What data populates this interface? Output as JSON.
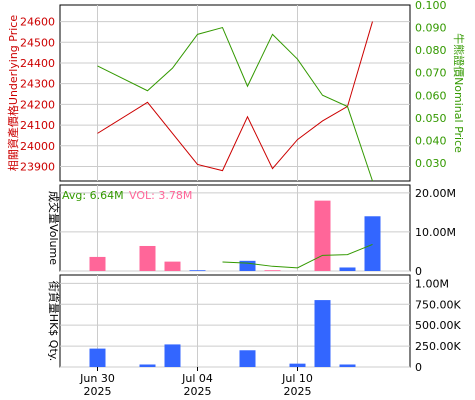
{
  "colors": {
    "underlying": "#cc0000",
    "nominal": "#339900",
    "volume_up": "#ff6699",
    "volume_down": "#3366ff",
    "avg_line": "#339900",
    "axis": "#000000",
    "grid": "#cccccc"
  },
  "chart_data": [
    {
      "type": "line",
      "name": "price-panel",
      "x": [
        "2025-06-27",
        "2025-06-30",
        "2025-07-01",
        "2025-07-02",
        "2025-07-03",
        "2025-07-04",
        "2025-07-07",
        "2025-07-08",
        "2025-07-09",
        "2025-07-10",
        "2025-07-11",
        "2025-07-14",
        "2025-07-15",
        "2025-07-16"
      ],
      "series": [
        {
          "name": "Underlying Price",
          "axis": "left",
          "values": [
            null,
            24060,
            null,
            24210,
            null,
            23910,
            23880,
            24140,
            23890,
            24030,
            24120,
            24190,
            24600,
            null
          ]
        },
        {
          "name": "Nominal Price",
          "axis": "right",
          "values": [
            null,
            0.073,
            null,
            0.062,
            0.072,
            0.087,
            0.09,
            0.064,
            0.087,
            0.076,
            0.06,
            0.055,
            0.022,
            null
          ]
        }
      ],
      "ylabel_left": "相關資產價格Underlying Price",
      "ylabel_right": "牛熊證價Nominal Price",
      "yticks_left": [
        "23900",
        "24000",
        "24100",
        "24200",
        "24300",
        "24400",
        "24500",
        "24600"
      ],
      "yticks_right": [
        "0.030",
        "0.040",
        "0.050",
        "0.060",
        "0.070",
        "0.080",
        "0.090",
        "0.100"
      ],
      "ylim_left": [
        23830,
        24680
      ],
      "ylim_right": [
        0.022,
        0.1
      ],
      "grid": true
    },
    {
      "type": "bar",
      "name": "volume-panel",
      "x": [
        "2025-06-27",
        "2025-06-30",
        "2025-07-01",
        "2025-07-02",
        "2025-07-03",
        "2025-07-04",
        "2025-07-07",
        "2025-07-08",
        "2025-07-09",
        "2025-07-10",
        "2025-07-11",
        "2025-07-14",
        "2025-07-15",
        "2025-07-16"
      ],
      "series": [
        {
          "name": "Volume",
          "values": [
            null,
            3.6,
            null,
            6.4,
            2.4,
            0.2,
            null,
            2.6,
            0.2,
            null,
            18.0,
            0.9,
            14.0,
            null
          ],
          "colors": [
            "",
            "up",
            "",
            "up",
            "up",
            "down",
            "",
            "down",
            "up",
            "",
            "up",
            "down",
            "down",
            ""
          ]
        },
        {
          "name": "Avg",
          "type": "line",
          "values": [
            null,
            null,
            null,
            null,
            null,
            null,
            2.3,
            2.0,
            1.2,
            0.8,
            4.0,
            4.2,
            6.8,
            null
          ]
        }
      ],
      "legend": {
        "avg_label": "Avg: 6.64M",
        "vol_label": "VOL: 3.78M"
      },
      "ylabel": "成交量Volume",
      "yticks": [
        "0",
        "10.00M",
        "20.00M"
      ],
      "ylim": [
        0,
        22
      ],
      "grid": true
    },
    {
      "type": "bar",
      "name": "outstanding-panel",
      "x": [
        "2025-06-27",
        "2025-06-30",
        "2025-07-01",
        "2025-07-02",
        "2025-07-03",
        "2025-07-04",
        "2025-07-07",
        "2025-07-08",
        "2025-07-09",
        "2025-07-10",
        "2025-07-11",
        "2025-07-14",
        "2025-07-15",
        "2025-07-16"
      ],
      "series": [
        {
          "name": "Outstanding Qty",
          "values": [
            null,
            220,
            null,
            30,
            270,
            null,
            null,
            200,
            null,
            40,
            800,
            30,
            null,
            null
          ]
        }
      ],
      "ylabel": "街貨量HK$ Qty.",
      "yticks": [
        "0",
        "250.00K",
        "500.00K",
        "750.00K",
        "1.00M"
      ],
      "ylim": [
        0,
        1100
      ],
      "xticks": [
        {
          "index": 1,
          "line1": "Jun 30",
          "line2": "2025"
        },
        {
          "index": 5,
          "line1": "Jul 04",
          "line2": "2025"
        },
        {
          "index": 9,
          "line1": "Jul 10",
          "line2": "2025"
        }
      ],
      "grid": true
    }
  ]
}
